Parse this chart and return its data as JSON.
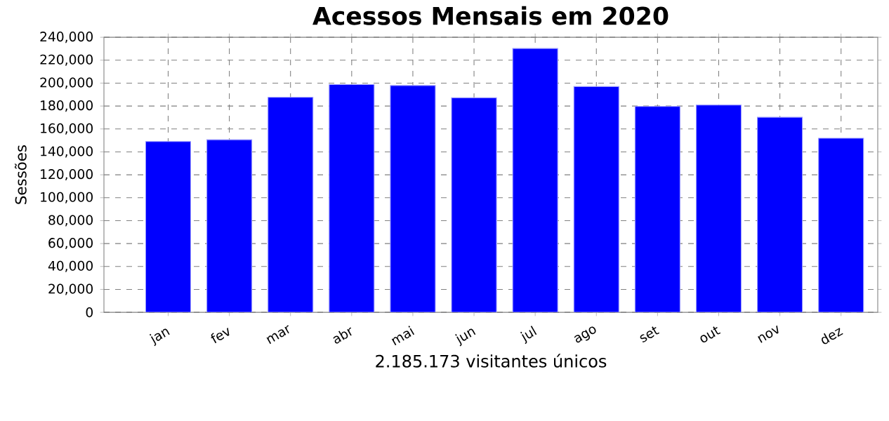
{
  "chart_data": {
    "type": "bar",
    "title": "Acessos Mensais em 2020",
    "xlabel": "2.185.173 visitantes únicos",
    "ylabel": "Sessões",
    "categories": [
      "jan",
      "fev",
      "mar",
      "abr",
      "mai",
      "jun",
      "jul",
      "ago",
      "set",
      "out",
      "nov",
      "dez"
    ],
    "values": [
      149000,
      150600,
      187600,
      198700,
      197900,
      187200,
      230200,
      197000,
      179600,
      180800,
      170200,
      151900
    ],
    "color": "#0000ff",
    "ylim": [
      0,
      240000
    ],
    "yticks": [
      {
        "value": 0,
        "label": "0"
      },
      {
        "value": 20000,
        "label": "20,000"
      },
      {
        "value": 40000,
        "label": "40,000"
      },
      {
        "value": 60000,
        "label": "60,000"
      },
      {
        "value": 80000,
        "label": "80,000"
      },
      {
        "value": 100000,
        "label": "100,000"
      },
      {
        "value": 120000,
        "label": "120,000"
      },
      {
        "value": 140000,
        "label": "140,000"
      },
      {
        "value": 160000,
        "label": "160,000"
      },
      {
        "value": 180000,
        "label": "180,000"
      },
      {
        "value": 200000,
        "label": "200,000"
      },
      {
        "value": 220000,
        "label": "220,000"
      },
      {
        "value": 240000,
        "label": "240,000"
      }
    ],
    "grid": true,
    "legend": false
  }
}
